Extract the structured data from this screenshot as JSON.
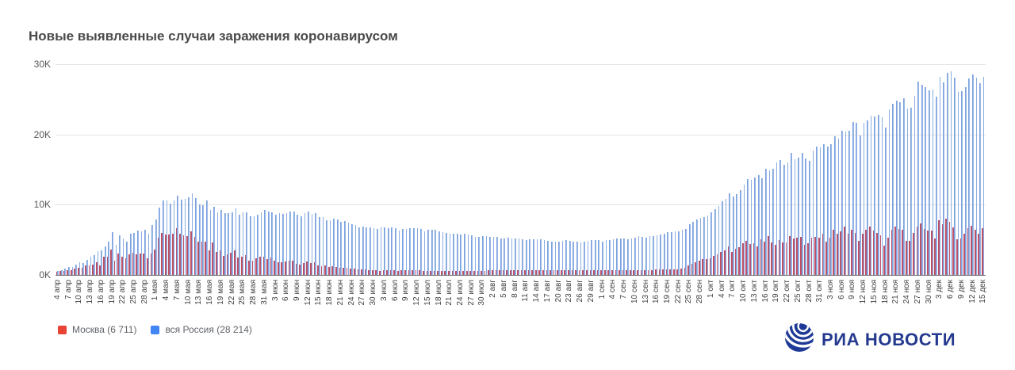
{
  "title": "Новые выявленные случаи заражения коронавирусом",
  "legend": {
    "items": [
      {
        "label": "Москва (6 711)",
        "color": "#e94335"
      },
      {
        "label": "вся Россия (28 214)",
        "color": "#4285f4"
      }
    ]
  },
  "logo": {
    "text": "РИА НОВОСТИ",
    "color": "#253a8e"
  },
  "chart_data": {
    "type": "bar",
    "title": "Новые выявленные случаи заражения коронавирусом",
    "xlabel": "",
    "ylabel": "",
    "ylim": [
      0,
      30000
    ],
    "grid": "horizontal",
    "legend_position": "bottom-left",
    "ytick_labels": [
      "0K",
      "10K",
      "20K",
      "30K"
    ],
    "x_tick_every_days": 3,
    "x_tick_labels": [
      "4 апр",
      "7 апр",
      "10 апр",
      "13 апр",
      "16 апр",
      "19 апр",
      "22 апр",
      "25 апр",
      "28 апр",
      "1 мая",
      "4 мая",
      "7 мая",
      "10 мая",
      "13 мая",
      "16 мая",
      "19 мая",
      "22 мая",
      "25 мая",
      "28 мая",
      "31 мая",
      "3 июн",
      "6 июн",
      "9 июн",
      "12 июн",
      "15 июн",
      "18 июн",
      "21 июн",
      "24 июн",
      "27 июн",
      "30 июн",
      "3 июл",
      "6 июл",
      "9 июл",
      "12 июл",
      "15 июл",
      "18 июл",
      "21 июл",
      "24 июл",
      "27 июл",
      "30 июл",
      "2 авг",
      "5 авг",
      "8 авг",
      "11 авг",
      "14 авг",
      "17 авг",
      "20 авг",
      "23 авг",
      "26 авг",
      "29 авг",
      "1 сен",
      "4 сен",
      "7 сен",
      "10 сен",
      "13 сен",
      "16 сен",
      "19 сен",
      "22 сен",
      "25 сен",
      "28 сен",
      "1 окт",
      "4 окт",
      "7 окт",
      "10 окт",
      "13 окт",
      "16 окт",
      "19 окт",
      "22 окт",
      "25 окт",
      "28 окт",
      "31 окт",
      "3 ноя",
      "6 ноя",
      "9 ноя",
      "12 ноя",
      "15 ноя",
      "18 ноя",
      "21 ноя",
      "24 ноя",
      "27 ноя",
      "30 ноя",
      "3 дек",
      "6 дек",
      "9 дек",
      "12 дек",
      "15 дек"
    ],
    "series": [
      {
        "name": "Москва",
        "legend_label": "Москва (6 711)",
        "color": "#e94335",
        "bar_color_left": "#cb4a56",
        "bar_color_right": "#a75a80",
        "last_value": 6711,
        "values": [
          434,
          536,
          591,
          697,
          660,
          857,
          1030,
          1071,
          1306,
          1355,
          1489,
          1774,
          1370,
          2649,
          2558,
          3570,
          2026,
          3083,
          2548,
          2332,
          2957,
          3215,
          2971,
          3075,
          2999,
          2391,
          3093,
          3561,
          5358,
          5948,
          5795,
          5714,
          5858,
          6703,
          5846,
          5667,
          5551,
          6169,
          5392,
          4703,
          4712,
          4748,
          3505,
          4610,
          3238,
          3545,
          2699,
          2913,
          3177,
          3534,
          2516,
          2560,
          2830,
          2091,
          2054,
          2367,
          2595,
          2611,
          2297,
          2476,
          2056,
          1842,
          1855,
          1956,
          2001,
          2003,
          1572,
          1436,
          1714,
          1965,
          1714,
          1759,
          1359,
          1290,
          1359,
          1107,
          1194,
          1106,
          1068,
          1068,
          1022,
          890,
          894,
          809,
          825,
          806,
          723,
          685,
          678,
          624,
          648,
          673,
          695,
          628,
          591,
          645,
          634,
          636,
          640,
          677,
          650,
          600,
          618,
          598,
          610,
          578,
          584,
          561,
          584,
          591,
          597,
          579,
          606,
          602,
          585,
          572,
          589,
          611,
          620,
          684,
          677,
          672,
          665,
          688,
          691,
          687,
          679,
          673,
          668,
          651,
          689,
          684,
          688,
          692,
          679,
          670,
          662,
          671,
          676,
          684,
          693,
          687,
          675,
          669,
          665,
          671,
          682,
          690,
          695,
          693,
          682,
          689,
          694,
          705,
          712,
          708,
          703,
          698,
          710,
          715,
          720,
          718,
          714,
          721,
          730,
          741,
          750,
          762,
          775,
          785,
          792,
          798,
          894,
          1048,
          1312,
          1560,
          1792,
          2003,
          2217,
          2300,
          2424,
          2704,
          2884,
          3327,
          3537,
          4082,
          3323,
          3701,
          3942,
          4501,
          4895,
          4395,
          4573,
          4050,
          5049,
          4699,
          5487,
          4610,
          4320,
          4999,
          4610,
          4666,
          5478,
          5224,
          5261,
          5376,
          4312,
          4501,
          5268,
          5426,
          5255,
          5826,
          4795,
          5255,
          6438,
          5838,
          6253,
          6897,
          5902,
          6427,
          5997,
          4842,
          5882,
          6434,
          6897,
          6271,
          5974,
          5596,
          4174,
          5255,
          6438,
          6897,
          6575,
          6438,
          4838,
          4906,
          5974,
          6868,
          7320,
          6590,
          6271,
          6271,
          5145,
          7750,
          7237,
          7993,
          7610,
          6730,
          5118,
          5145,
          5871,
          6622,
          7045,
          6425,
          5874,
          6711
        ]
      },
      {
        "name": "вся Россия",
        "legend_label": "вся Россия (28 214)",
        "color": "#4285f4",
        "bar_color_left": "#6f98da",
        "bar_color_right": "#a6c1eb",
        "last_value": 28214,
        "values": [
          582,
          658,
          954,
          1154,
          1175,
          1459,
          1786,
          1667,
          2186,
          2558,
          2774,
          3388,
          3448,
          4070,
          4785,
          6060,
          4268,
          5642,
          5236,
          4774,
          5849,
          5966,
          6361,
          6198,
          6411,
          5841,
          7099,
          7933,
          9623,
          10633,
          10581,
          10102,
          10559,
          11231,
          10699,
          10817,
          11012,
          11656,
          10899,
          10028,
          9974,
          10598,
          9200,
          9709,
          8926,
          9263,
          8764,
          8849,
          8894,
          9434,
          8599,
          8946,
          8915,
          8338,
          8371,
          8572,
          8952,
          9268,
          9035,
          8863,
          8536,
          8831,
          8726,
          8855,
          8984,
          8985,
          8595,
          8404,
          8779,
          8987,
          8706,
          8835,
          8246,
          8248,
          7843,
          7790,
          7972,
          7889,
          7600,
          7640,
          7425,
          7176,
          7113,
          6800,
          6852,
          6791,
          6719,
          6693,
          6556,
          6760,
          6718,
          6632,
          6736,
          6611,
          6368,
          6562,
          6509,
          6635,
          6611,
          6615,
          6537,
          6248,
          6422,
          6428,
          6406,
          6234,
          6109,
          5940,
          5842,
          5862,
          5848,
          5811,
          5871,
          5765,
          5635,
          5395,
          5475,
          5509,
          5482,
          5462,
          5427,
          5394,
          5159,
          5204,
          5267,
          5241,
          5212,
          5189,
          5118,
          4945,
          5102,
          5057,
          5065,
          5061,
          4969,
          4892,
          4748,
          4785,
          4767,
          4870,
          4921,
          4852,
          4744,
          4696,
          4676,
          4711,
          4829,
          4941,
          4993,
          4980,
          4729,
          4952,
          4995,
          5110,
          5205,
          5195,
          5185,
          5099,
          5218,
          5310,
          5488,
          5449,
          5361,
          5509,
          5529,
          5670,
          5762,
          5905,
          6065,
          6148,
          6196,
          6215,
          6431,
          6595,
          7212,
          7523,
          7867,
          8135,
          8232,
          8481,
          8945,
          9412,
          9859,
          10499,
          10888,
          11615,
          11115,
          11493,
          12126,
          12846,
          13634,
          13592,
          13868,
          14231,
          13754,
          15150,
          14922,
          15099,
          15982,
          16319,
          15700,
          15971,
          17340,
          16521,
          16710,
          17347,
          16550,
          16202,
          17717,
          18283,
          18140,
          18665,
          18257,
          18648,
          19768,
          19404,
          20582,
          20396,
          20498,
          21798,
          21608,
          19851,
          21608,
          21983,
          22702,
          22572,
          22778,
          22410,
          20985,
          23610,
          24318,
          24822,
          24581,
          25173,
          23675,
          23765,
          25487,
          27543,
          27100,
          26683,
          26338,
          26402,
          25345,
          28145,
          27403,
          28782,
          29039,
          28142,
          26097,
          26190,
          26748,
          27927,
          28585,
          28080,
          27328,
          28214
        ]
      }
    ]
  }
}
